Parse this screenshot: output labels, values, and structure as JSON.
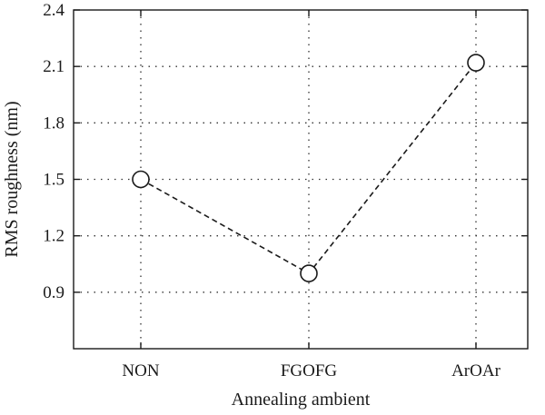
{
  "chart_data": {
    "type": "line",
    "xlabel": "Annealing ambient",
    "ylabel": "RMS roughness (nm)",
    "categories": [
      "NON",
      "FGOFG",
      "ArOAr"
    ],
    "series": [
      {
        "values": [
          1.5,
          1.0,
          2.12
        ]
      }
    ],
    "ylim": [
      0.6,
      2.4
    ],
    "yticks": [
      0.9,
      1.2,
      1.5,
      1.8,
      2.1,
      2.4
    ],
    "ytick_labels": [
      "0.9",
      "1.2",
      "1.5",
      "1.8",
      "2.1",
      "2.4"
    ],
    "grid": true,
    "line_style": "dashed",
    "marker": "open-circle",
    "colors": {
      "ink": "#1a1a1a",
      "marker_fill": "#ffffff"
    }
  }
}
